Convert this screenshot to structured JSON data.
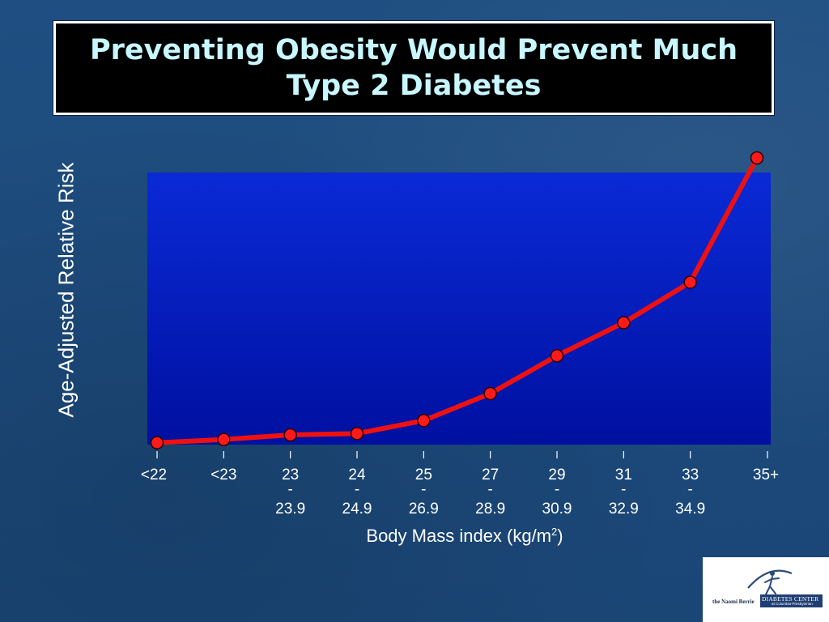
{
  "slide": {
    "title": "Preventing Obesity Would Prevent Much Type 2 Diabetes",
    "background_color": "#1d4b7c"
  },
  "chart_data": {
    "type": "line",
    "title": "Preventing Obesity Would Prevent Much Type 2 Diabetes",
    "xlabel_main": "Body Mass index (kg/m",
    "xlabel_sup": "2",
    "xlabel_end": ")",
    "ylabel": "Age-Adjusted Relative Risk",
    "categories": [
      {
        "top": "<22",
        "mid": "",
        "bottom": ""
      },
      {
        "top": "<23",
        "mid": "",
        "bottom": ""
      },
      {
        "top": "23",
        "mid": "-",
        "bottom": "23.9"
      },
      {
        "top": "24",
        "mid": "-",
        "bottom": "24.9"
      },
      {
        "top": "25",
        "mid": "-",
        "bottom": "26.9"
      },
      {
        "top": "27",
        "mid": "-",
        "bottom": "28.9"
      },
      {
        "top": "29",
        "mid": "-",
        "bottom": "30.9"
      },
      {
        "top": "31",
        "mid": "-",
        "bottom": "32.9"
      },
      {
        "top": "33",
        "mid": "-",
        "bottom": "34.9"
      },
      {
        "top": "35+",
        "mid": "",
        "bottom": ""
      }
    ],
    "series": [
      {
        "values": [
          1.0,
          2.2,
          3.9,
          4.4,
          9.2,
          19.2,
          33.2,
          45.4,
          60.4,
          106.4
        ]
      }
    ],
    "ylim": [
      0,
      100
    ],
    "y_ticks_shown": false,
    "grid": false,
    "legend": "none",
    "plot_background_top": "#0a2ad6",
    "plot_background_bottom": "#0010a0",
    "line_color": "#ee1111",
    "marker_color": "#ff1a1a"
  },
  "logo": {
    "prefix": "the Naomi Berrie",
    "name": "DIABETES CENTER",
    "subtitle": "at Columbia-Presbyterian"
  }
}
